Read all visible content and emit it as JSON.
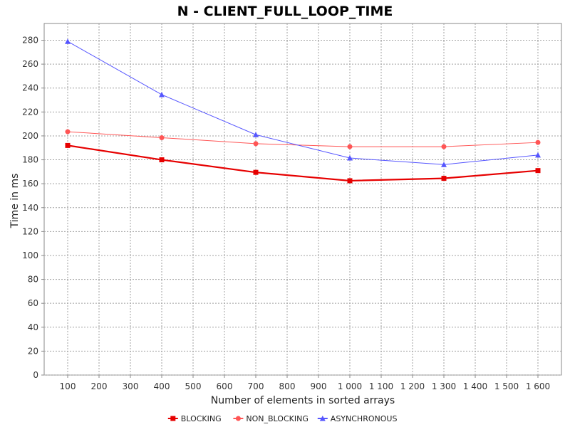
{
  "chart_data": {
    "type": "line",
    "title": "N - CLIENT_FULL_LOOP_TIME",
    "xlabel": "Number of elements in sorted arrays",
    "ylabel": "Time in ms",
    "x_ticks": [
      "100",
      "200",
      "300",
      "400",
      "500",
      "600",
      "700",
      "800",
      "900",
      "1 000",
      "1 100",
      "1 200",
      "1 300",
      "1 400",
      "1 500",
      "1 600"
    ],
    "x_tick_values": [
      100,
      200,
      300,
      400,
      500,
      600,
      700,
      800,
      900,
      1000,
      1100,
      1200,
      1300,
      1400,
      1500,
      1600
    ],
    "y_ticks": [
      "0",
      "20",
      "40",
      "60",
      "80",
      "100",
      "120",
      "140",
      "160",
      "180",
      "200",
      "220",
      "240",
      "260",
      "280"
    ],
    "y_tick_values": [
      0,
      20,
      40,
      60,
      80,
      100,
      120,
      140,
      160,
      180,
      200,
      220,
      240,
      260,
      280
    ],
    "xlim": [
      25,
      1675
    ],
    "ylim": [
      0,
      294
    ],
    "grid": true,
    "legend_position": "bottom-center",
    "x": [
      100,
      400,
      700,
      1000,
      1300,
      1600
    ],
    "series": [
      {
        "name": "BLOCKING",
        "values": [
          192,
          180,
          169.5,
          162.5,
          164.5,
          171
        ],
        "color": "#e60000",
        "marker": "square"
      },
      {
        "name": "NON_BLOCKING",
        "values": [
          203.5,
          198.5,
          193.5,
          191,
          191,
          194.5
        ],
        "color": "#ff5555",
        "marker": "circle"
      },
      {
        "name": "ASYNCHRONOUS",
        "values": [
          279,
          234.5,
          201,
          181.5,
          176,
          184
        ],
        "color": "#5555ff",
        "marker": "triangle"
      }
    ]
  }
}
